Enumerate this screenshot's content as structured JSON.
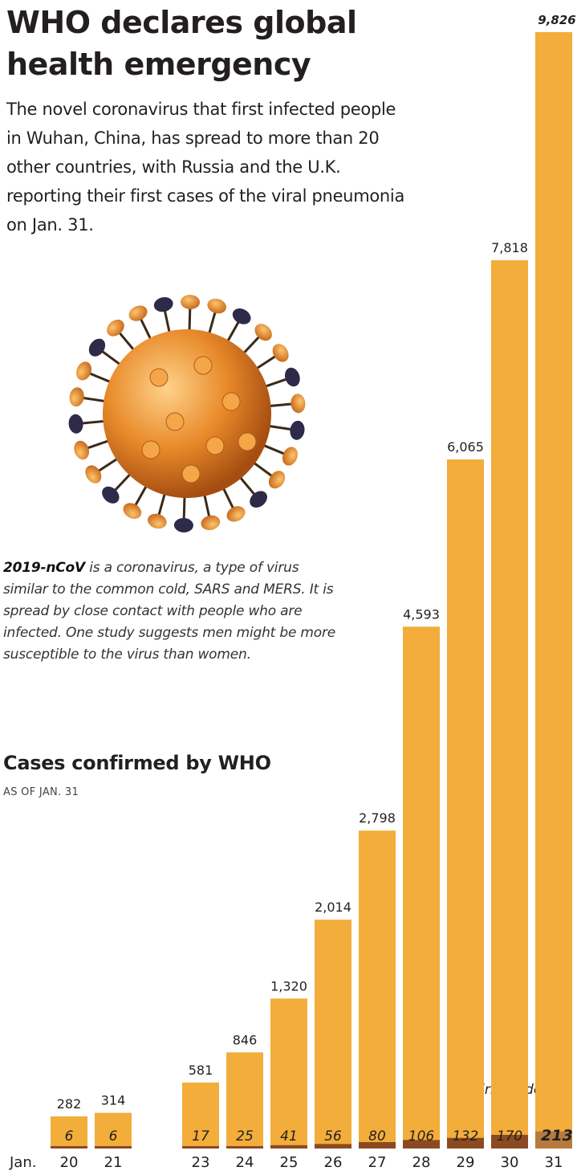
{
  "headline": [
    "WHO declares global",
    "health emergency"
  ],
  "intro": "The novel coronavirus that first infected people in Wuhan, China, has spread to more than 20 other countries, with Russia and the U.K. reporting their first cases of the viral pneumonia on Jan. 31.",
  "virus_image": "coronavirus-illustration",
  "description": {
    "lead": "2019-nCoV",
    "text": " is a coronavirus, a type of virus similar to the common cold, SARS and MERS. It is spread by close contact with people who are infected. One study suggests men might be more susceptible to the virus than women."
  },
  "colors": {
    "cases_bar": "#f2ad3b",
    "deaths_bar": "#8b4a21",
    "last_deaths_bar": "#b77a3e",
    "text": "#231f20"
  },
  "chart_data": {
    "type": "bar",
    "title": "Cases confirmed by WHO",
    "subtitle": "AS OF JAN. 31",
    "x_prefix": "Jan.",
    "categories": [
      "20",
      "21",
      "23",
      "24",
      "25",
      "26",
      "27",
      "28",
      "29",
      "30",
      "31"
    ],
    "cases_labels": [
      "282",
      "314",
      "581",
      "846",
      "1,320",
      "2,014",
      "2,798",
      "4,593",
      "6,065",
      "7,818",
      "9,826"
    ],
    "deaths_labels": [
      "6",
      "6",
      "17",
      "25",
      "41",
      "56",
      "80",
      "106",
      "132",
      "170",
      "213"
    ],
    "deaths_legend": "Confirmed deaths",
    "series": [
      {
        "values": [
          282,
          314,
          581,
          846,
          1320,
          2014,
          2798,
          4593,
          6065,
          7818,
          9826
        ]
      },
      {
        "name": "Confirmed deaths",
        "values": [
          6,
          6,
          17,
          25,
          41,
          56,
          80,
          106,
          132,
          170,
          213
        ]
      }
    ]
  }
}
